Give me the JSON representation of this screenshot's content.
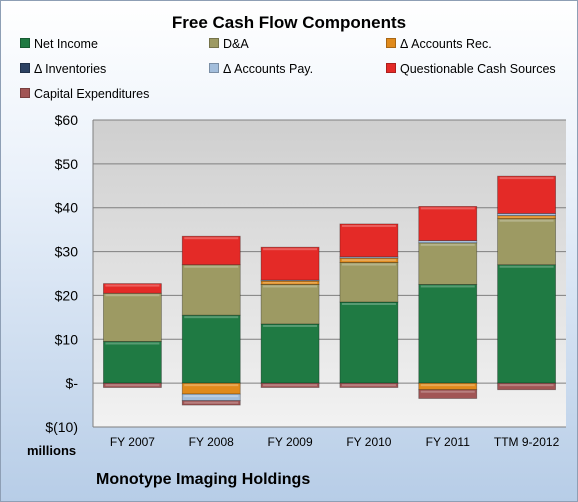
{
  "chart_data": {
    "type": "bar",
    "stacked": true,
    "title": "Free Cash Flow Components",
    "subtitle": "",
    "xlabel": "",
    "ylabel": "",
    "unit_label": "millions",
    "company": "Monotype Imaging Holdings",
    "ylim": [
      -10,
      60
    ],
    "yticks": [
      -10,
      0,
      10,
      20,
      30,
      40,
      50,
      60
    ],
    "ytick_labels": [
      "$(10)",
      "$-",
      "$10",
      "$20",
      "$30",
      "$40",
      "$50",
      "$60"
    ],
    "grid": true,
    "legend_position": "top",
    "categories": [
      "FY 2007",
      "FY 2008",
      "FY 2009",
      "FY 2010",
      "FY 2011",
      "TTM 9-2012"
    ],
    "series": [
      {
        "name": "Net Income",
        "color": "#1f7a43",
        "values": [
          9.5,
          15.5,
          13.5,
          18.5,
          22.5,
          27.0
        ]
      },
      {
        "name": "D&A",
        "color": "#9d9a63",
        "values": [
          11.0,
          11.5,
          9.0,
          9.0,
          9.5,
          10.5
        ]
      },
      {
        "name": "Δ Accounts Rec.",
        "color": "#e08a1c",
        "values": [
          0.0,
          -2.5,
          0.8,
          1.0,
          -1.5,
          0.7
        ]
      },
      {
        "name": "Δ Inventories",
        "color": "#2d4263",
        "values": [
          0.0,
          0.0,
          0.0,
          0.0,
          0.0,
          0.0
        ]
      },
      {
        "name": "Δ Accounts Pay.",
        "color": "#a3bedc",
        "values": [
          0.0,
          -1.5,
          0.2,
          0.3,
          0.5,
          0.5
        ]
      },
      {
        "name": "Questionable Cash Sources",
        "color": "#e42a27",
        "values": [
          2.2,
          6.5,
          7.5,
          7.5,
          7.8,
          8.5
        ]
      },
      {
        "name": "Capital Expenditures",
        "color": "#a15555",
        "values": [
          -1.0,
          -1.0,
          -1.0,
          -1.0,
          -2.0,
          -1.5
        ]
      }
    ]
  }
}
